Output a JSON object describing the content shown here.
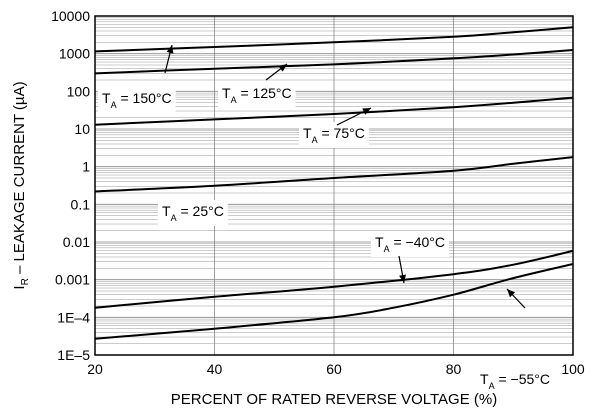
{
  "chart_data": {
    "type": "line",
    "xlabel": "PERCENT OF RATED REVERSE VOLTAGE (%)",
    "ylabel_main": "I",
    "ylabel_sub": "R",
    "ylabel_rest": " – LEAKAGE CURRENT (µA)",
    "xlim": [
      20,
      100
    ],
    "ylim": [
      1e-05,
      10000
    ],
    "yscale": "log",
    "grid": true,
    "x_ticks": [
      20,
      40,
      60,
      80,
      100
    ],
    "y_ticks": [
      {
        "value": 10000,
        "label": "10000"
      },
      {
        "value": 1000,
        "label": "1000"
      },
      {
        "value": 100,
        "label": "100"
      },
      {
        "value": 10,
        "label": "10"
      },
      {
        "value": 1,
        "label": "1"
      },
      {
        "value": 0.1,
        "label": "0.1"
      },
      {
        "value": 0.01,
        "label": "0.01"
      },
      {
        "value": 0.001,
        "label": "0.001"
      },
      {
        "value": 0.0001,
        "label": "1E–4"
      },
      {
        "value": 1e-05,
        "label": "1E–5"
      }
    ],
    "series": [
      {
        "name": "T_A = 150°C",
        "x": [
          20,
          40,
          60,
          80,
          90,
          100
        ],
        "y": [
          1150,
          1500,
          2000,
          2800,
          3700,
          5000
        ]
      },
      {
        "name": "T_A = 125°C",
        "x": [
          20,
          40,
          60,
          80,
          90,
          100
        ],
        "y": [
          300,
          400,
          520,
          750,
          950,
          1250
        ]
      },
      {
        "name": "T_A = 75°C",
        "x": [
          20,
          40,
          60,
          80,
          90,
          100
        ],
        "y": [
          13,
          18,
          25,
          38,
          50,
          68
        ]
      },
      {
        "name": "T_A = 25°C",
        "x": [
          20,
          40,
          60,
          80,
          90,
          100
        ],
        "y": [
          0.22,
          0.31,
          0.5,
          0.78,
          1.2,
          1.8
        ]
      },
      {
        "name": "T_A = −40°C",
        "x": [
          20,
          40,
          60,
          80,
          90,
          100
        ],
        "y": [
          0.00018,
          0.00035,
          0.00065,
          0.0014,
          0.0025,
          0.0058
        ]
      },
      {
        "name": "T_A = −55°C",
        "x": [
          20,
          40,
          60,
          70,
          80,
          90,
          100
        ],
        "y": [
          2.7e-05,
          5e-05,
          0.0001,
          0.00018,
          0.0004,
          0.0011,
          0.0026
        ]
      }
    ],
    "annotations": [
      {
        "main": "T",
        "sub": "A",
        "rest": " = 150°C"
      },
      {
        "main": "T",
        "sub": "A",
        "rest": " = 125°C"
      },
      {
        "main": "T",
        "sub": "A",
        "rest": " = 75°C"
      },
      {
        "main": "T",
        "sub": "A",
        "rest": " = 25°C"
      },
      {
        "main": "T",
        "sub": "A",
        "rest": " = −40°C"
      },
      {
        "main": "T",
        "sub": "A",
        "rest": " = −55°C"
      }
    ],
    "colors": {
      "line": "#000000",
      "grid": "#999999",
      "background": "#ffffff"
    }
  }
}
